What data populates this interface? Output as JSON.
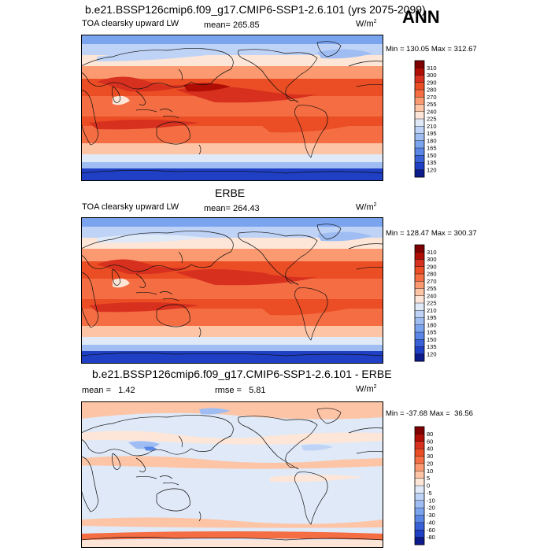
{
  "season": "ANN",
  "chart_data": [
    {
      "type": "heatmap",
      "title": "b.e21.BSSP126cmip6.f09_g17.CMIP6-SSP1-2.6.101 (yrs 2075-2099)",
      "left_label": "TOA clearsky upward LW",
      "mean_label": "mean= 265.85",
      "units_base": "W/m",
      "units_exp": "2",
      "minmax": "Min = 130.05 Max = 312.67",
      "levels": [
        "310",
        "300",
        "290",
        "280",
        "270",
        "255",
        "240",
        "225",
        "210",
        "195",
        "180",
        "165",
        "150",
        "135",
        "120"
      ],
      "colors": [
        "#7f0000",
        "#b00e05",
        "#d7301f",
        "#eb4d24",
        "#f46d43",
        "#fb9a70",
        "#fdc4a6",
        "#fde6d8",
        "#dfe9f7",
        "#bfd3f6",
        "#9fbdf3",
        "#7ba4ef",
        "#5a86e6",
        "#3a62d8",
        "#1f3fc4",
        "#0d1a8a"
      ]
    },
    {
      "type": "heatmap",
      "title": "ERBE",
      "left_label": "TOA clearsky upward LW",
      "mean_label": "mean= 264.43",
      "units_base": "W/m",
      "units_exp": "2",
      "minmax": "Min = 128.47 Max = 300.37",
      "levels": [
        "310",
        "300",
        "290",
        "280",
        "270",
        "255",
        "240",
        "225",
        "210",
        "195",
        "180",
        "165",
        "150",
        "135",
        "120"
      ],
      "colors": [
        "#7f0000",
        "#b00e05",
        "#d7301f",
        "#eb4d24",
        "#f46d43",
        "#fb9a70",
        "#fdc4a6",
        "#fde6d8",
        "#dfe9f7",
        "#bfd3f6",
        "#9fbdf3",
        "#7ba4ef",
        "#5a86e6",
        "#3a62d8",
        "#1f3fc4",
        "#0d1a8a"
      ]
    },
    {
      "type": "heatmap",
      "title": "b.e21.BSSP126cmip6.f09_g17.CMIP6-SSP1-2.6.101 - ERBE",
      "mean_label": "mean =   1.42",
      "rmse_label": "rmse =   5.81",
      "units_base": "W/m",
      "units_exp": "2",
      "minmax": "Min = -37.68 Max =  36.56",
      "levels": [
        "80",
        "60",
        "40",
        "30",
        "20",
        "10",
        "5",
        "0",
        "-5",
        "-10",
        "-20",
        "-30",
        "-40",
        "-60",
        "-80"
      ],
      "colors": [
        "#7f0000",
        "#b00e05",
        "#d7301f",
        "#eb4d24",
        "#f46d43",
        "#fb9a70",
        "#fdc4a6",
        "#fde6d8",
        "#dfe9f7",
        "#bfd3f6",
        "#9fbdf3",
        "#7ba4ef",
        "#5a86e6",
        "#3a62d8",
        "#1f3fc4",
        "#0d1a8a"
      ]
    }
  ]
}
